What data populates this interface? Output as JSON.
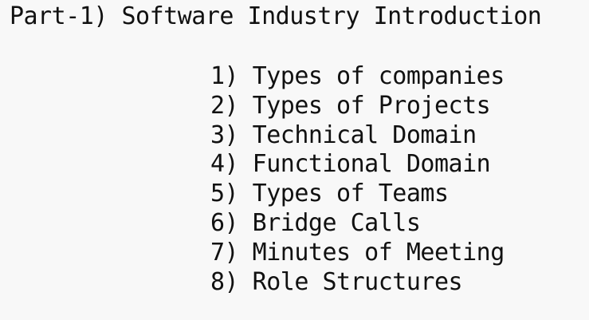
{
  "title": "Part-1) Software Industry Introduction",
  "items": [
    "1) Types of companies",
    "2) Types of Projects",
    "3) Technical Domain",
    "4) Functional Domain",
    "5) Types of Teams",
    "6) Bridge Calls",
    "7) Minutes of Meeting",
    "8) Role Structures"
  ]
}
